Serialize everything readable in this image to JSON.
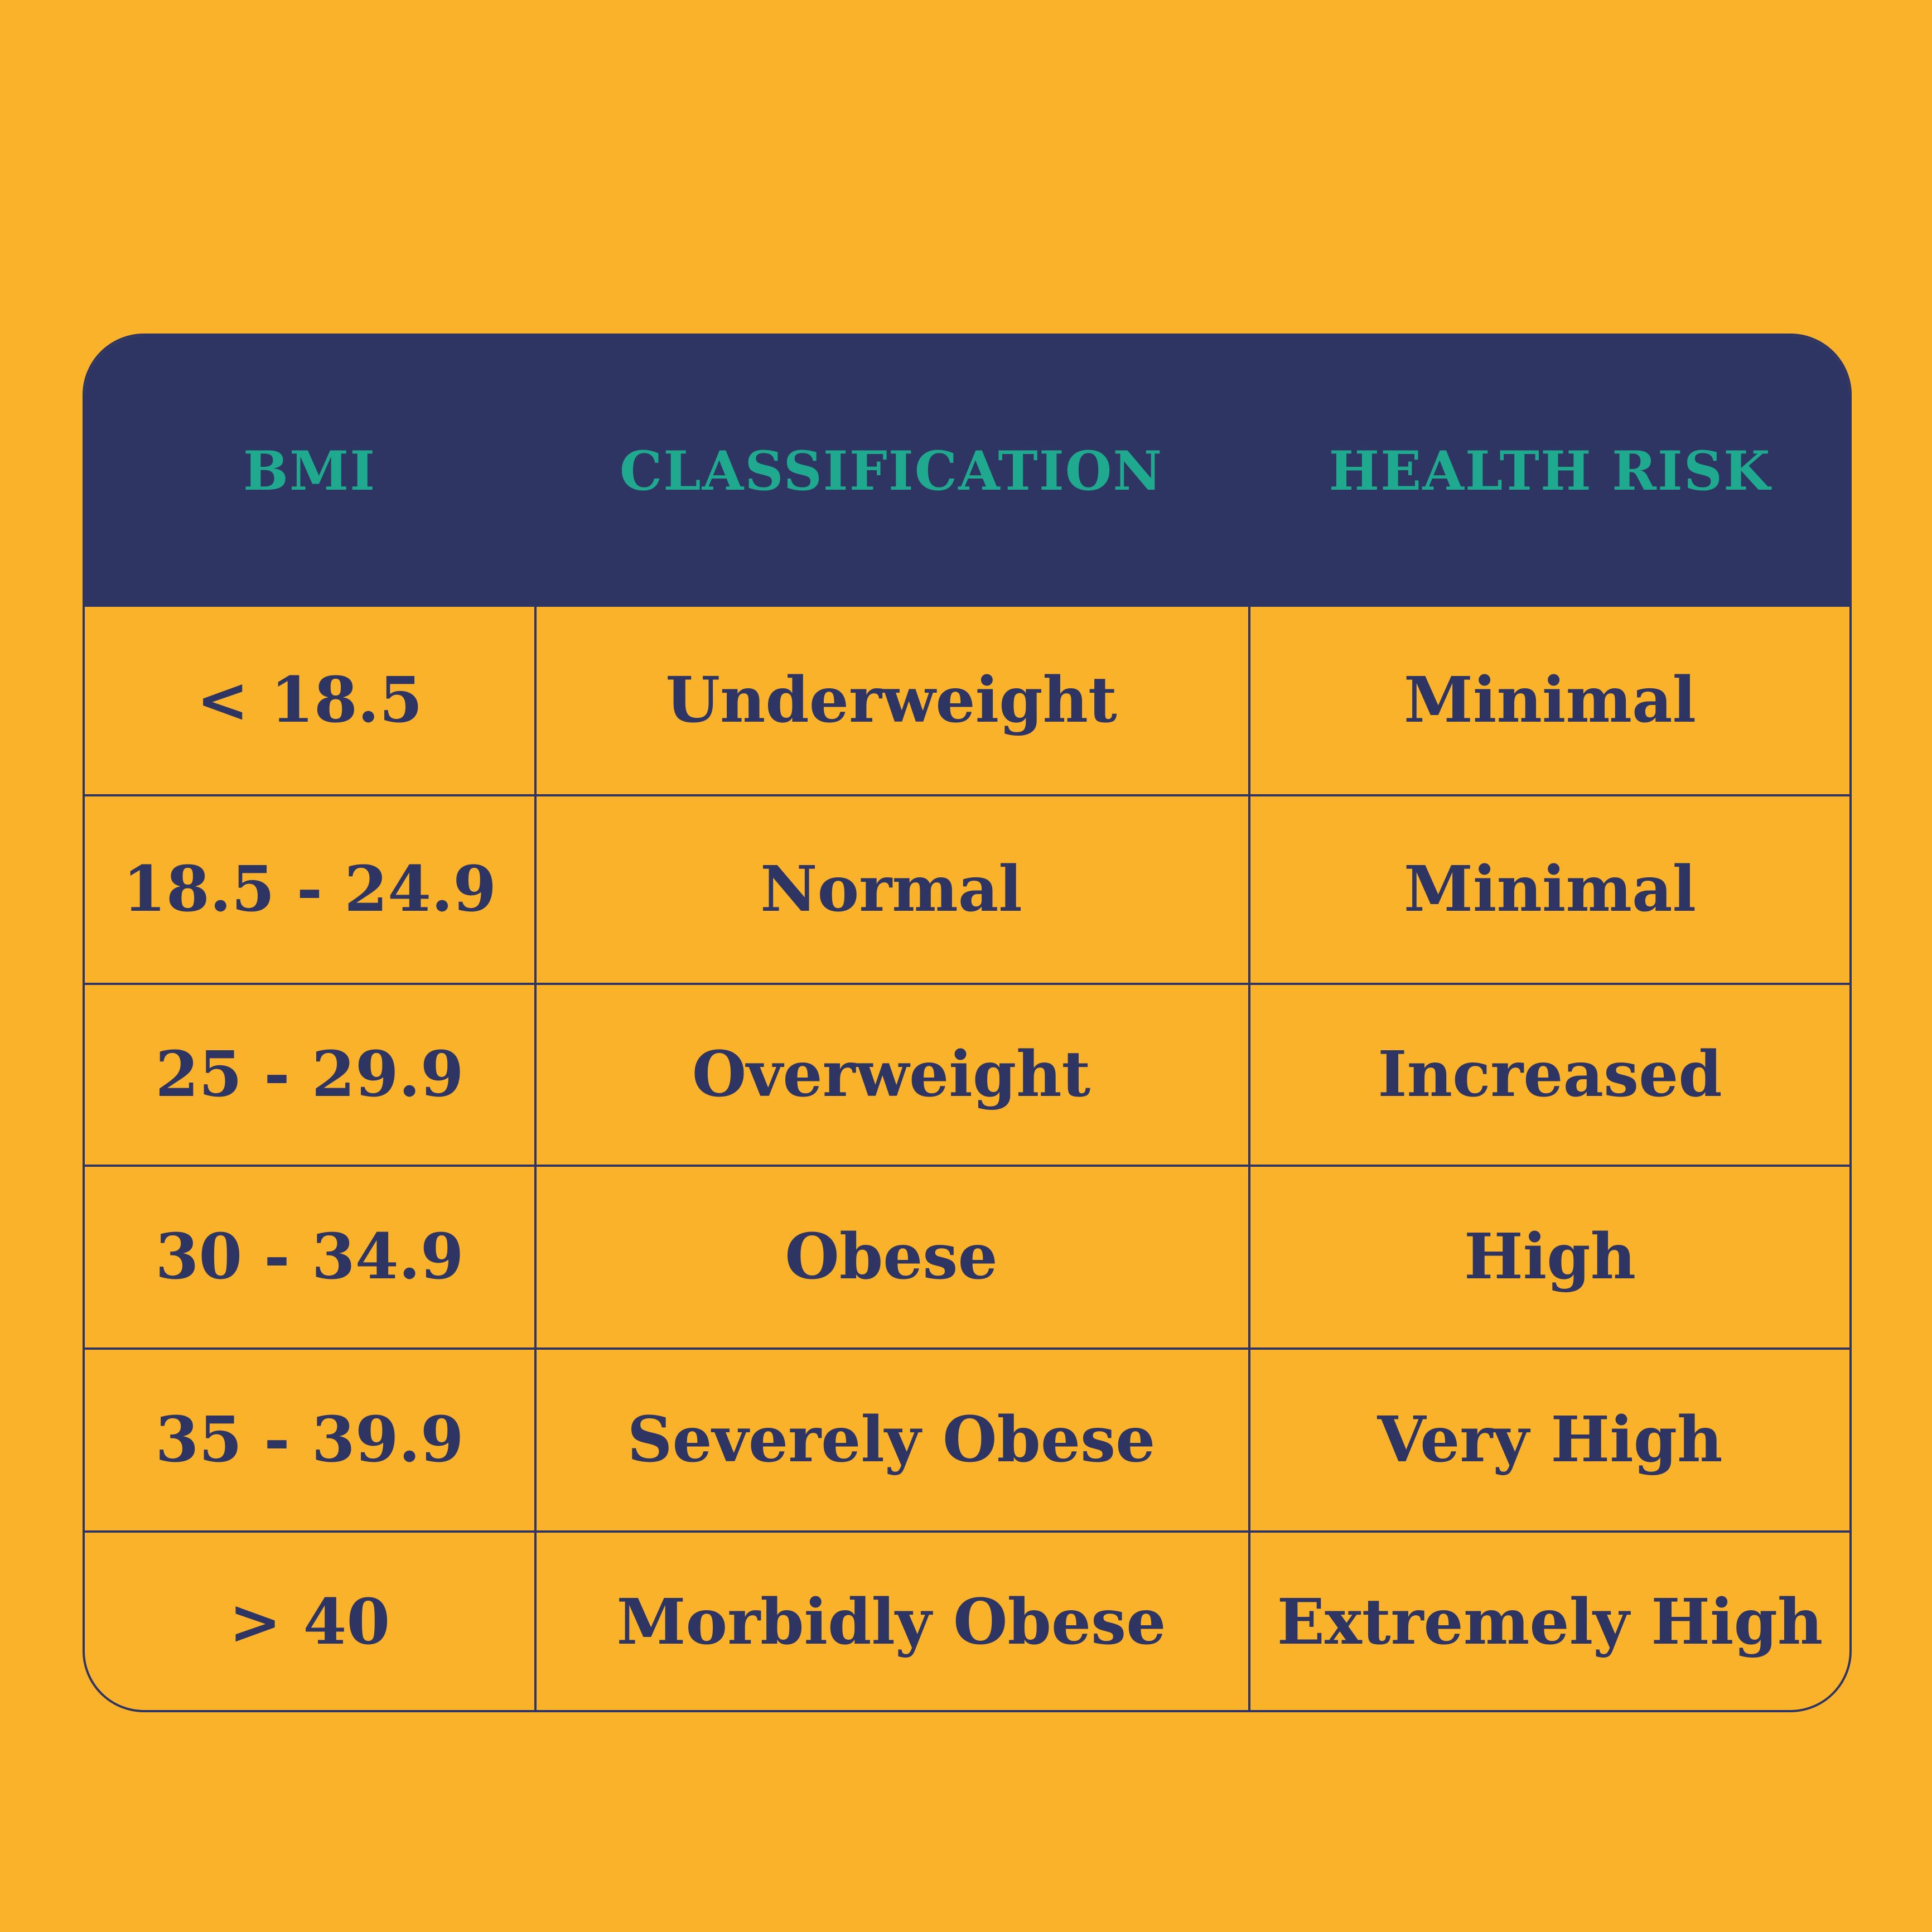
{
  "colors": {
    "background": "#fbb22b",
    "header_background": "#2e3562",
    "header_text": "#1fa98e",
    "body_text": "#2e3562",
    "grid_line": "#2e3562"
  },
  "table": {
    "headers": [
      "BMI",
      "CLASSIFICATION",
      "HEALTH RISK"
    ],
    "rows": [
      {
        "bmi": "< 18.5",
        "classification": "Underweight",
        "risk": "Minimal"
      },
      {
        "bmi": "18.5 - 24.9",
        "classification": "Normal",
        "risk": "Minimal"
      },
      {
        "bmi": "25 - 29.9",
        "classification": "Overweight",
        "risk": "Increased"
      },
      {
        "bmi": "30 - 34.9",
        "classification": "Obese",
        "risk": "High"
      },
      {
        "bmi": "35 - 39.9",
        "classification": "Severely Obese",
        "risk": "Very High"
      },
      {
        "bmi": "> 40",
        "classification": "Morbidly Obese",
        "risk": "Extremely High"
      }
    ]
  }
}
